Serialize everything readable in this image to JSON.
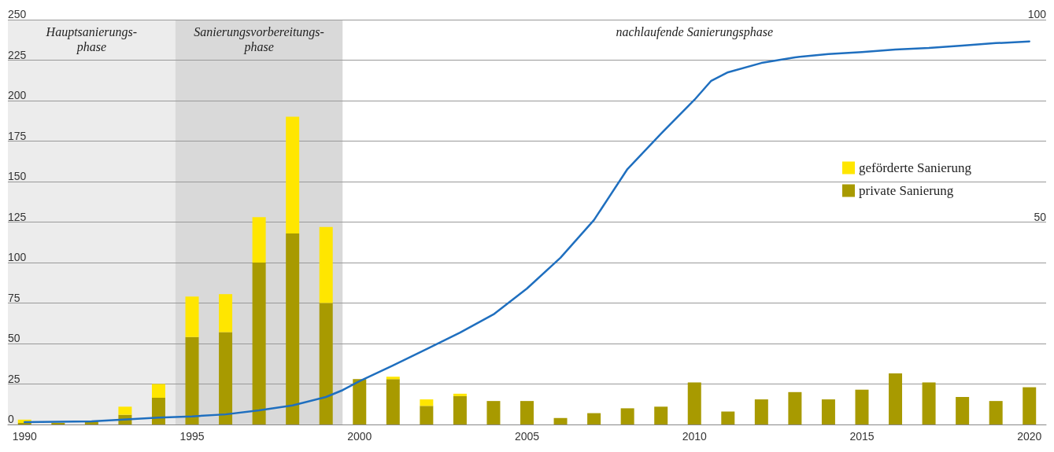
{
  "chart_data": {
    "type": "bar",
    "stacked": true,
    "x": [
      1990,
      1991,
      1992,
      1993,
      1994,
      1995,
      1996,
      1997,
      1998,
      1999,
      2000,
      2001,
      2002,
      2003,
      2004,
      2005,
      2006,
      2007,
      2008,
      2009,
      2010,
      2011,
      2012,
      2013,
      2014,
      2015,
      2016,
      2017,
      2018,
      2019,
      2020
    ],
    "series": [
      {
        "name": "private Sanierung",
        "color": "#a89a00",
        "values": [
          1,
          1,
          2,
          6,
          16.5,
          54,
          57,
          100,
          118,
          75,
          28,
          28,
          11.5,
          17.5,
          14.5,
          14.5,
          4,
          7,
          10,
          11,
          26,
          8,
          15.5,
          20,
          15.5,
          21.5,
          31.5,
          26,
          17,
          14.5,
          23
        ]
      },
      {
        "name": "geförderte Sanierung",
        "color": "#ffe600",
        "values": [
          2,
          0,
          0,
          5,
          8.5,
          25,
          23.5,
          28,
          72,
          47,
          0,
          1.5,
          4,
          1.5,
          0,
          0,
          0,
          0,
          0,
          0,
          0,
          0,
          0,
          0,
          0,
          0,
          0,
          0,
          0,
          0,
          0
        ]
      },
      {
        "type": "line",
        "axis": "y2",
        "color": "#1f6fbf",
        "marker": "none",
        "x": [
          1990,
          1992,
          1994,
          1995,
          1996,
          1997,
          1998,
          1999,
          1999.5,
          2000,
          2001,
          2002,
          2003,
          2004,
          2005,
          2006,
          2007,
          2008,
          2009,
          2010,
          2010.5,
          2011,
          2012,
          2013,
          2014,
          2015,
          2016,
          2017,
          2018,
          2019,
          2020
        ],
        "values": [
          0.6,
          0.8,
          1.7,
          2,
          2.5,
          3.5,
          4.7,
          6.8,
          8.5,
          10.7,
          14.6,
          18.6,
          22.7,
          27.2,
          33.6,
          41.2,
          50.5,
          63.1,
          71.8,
          80.2,
          84.9,
          87,
          89.3,
          90.7,
          91.5,
          92,
          92.6,
          93,
          93.6,
          94.2,
          94.6
        ]
      }
    ],
    "xlim": [
      1989.5,
      2020.5
    ],
    "xticks": [
      1990,
      1995,
      2000,
      2005,
      2010,
      2015,
      2020
    ],
    "ylim": [
      0,
      250
    ],
    "yticks": [
      0,
      25,
      50,
      75,
      100,
      125,
      150,
      175,
      200,
      225,
      250
    ],
    "y2lim": [
      0,
      100
    ],
    "y2ticks": [
      50,
      100
    ],
    "bands": [
      {
        "axis": "x",
        "from": 1989.5,
        "to": 1994.5,
        "label": "Hauptsanierungs-\nphase",
        "color": "#ececec"
      },
      {
        "axis": "x",
        "from": 1994.5,
        "to": 1999.5,
        "label": "Sanierungsvorbereitungs-\nphase",
        "color": "#d9d9d9"
      },
      {
        "axis": "x",
        "from": 1999.5,
        "to": 2020.5,
        "label": "nachlaufende Sanierungsphase",
        "color": "#ffffff"
      }
    ],
    "grid": "y",
    "legend": "right"
  }
}
